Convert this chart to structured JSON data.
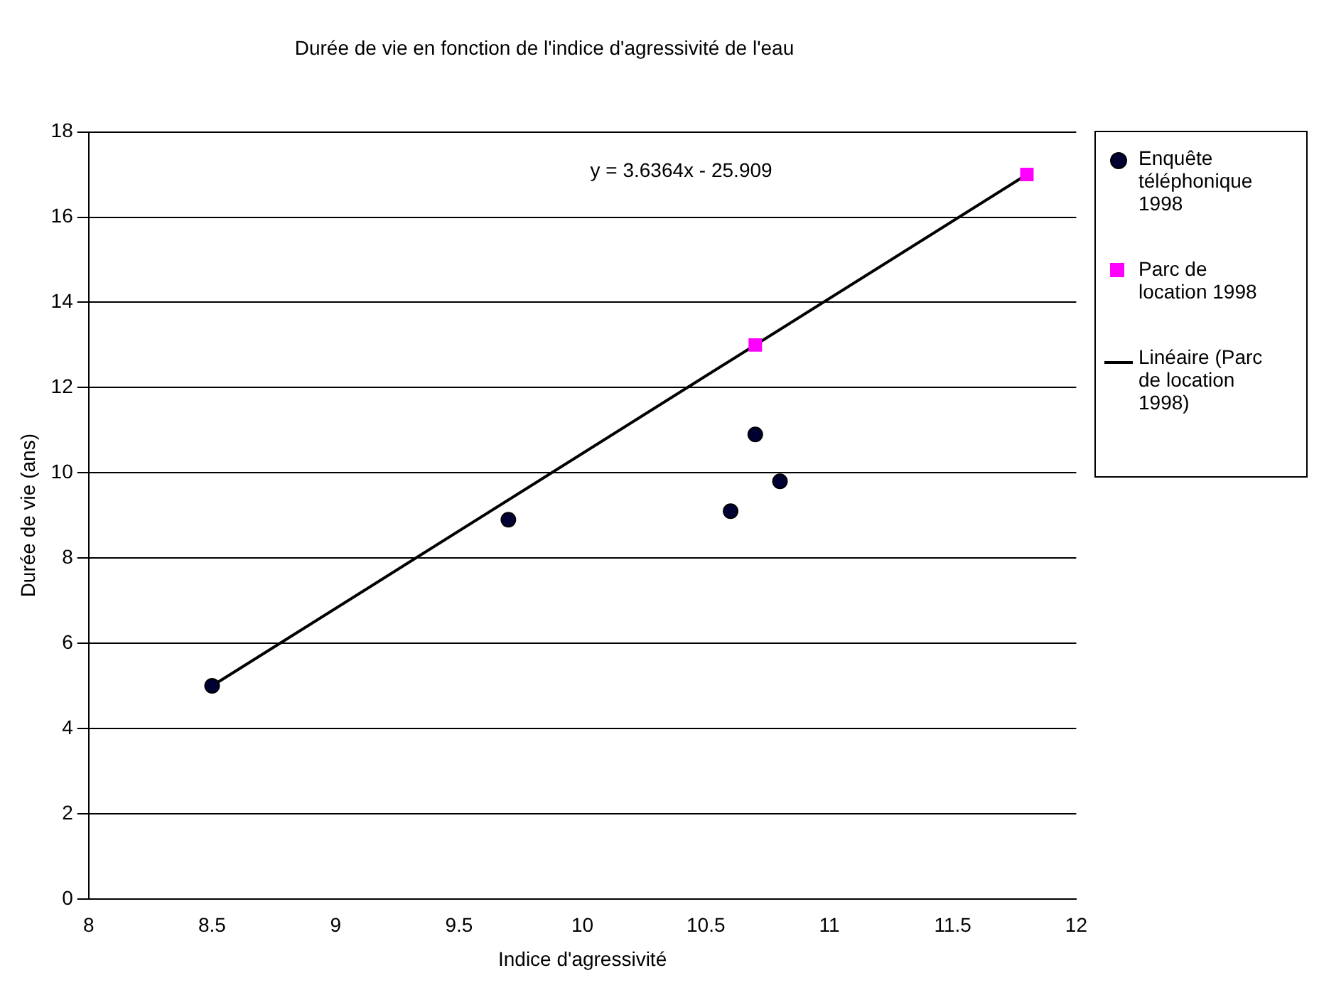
{
  "chart_data": {
    "type": "scatter",
    "title": "Durée de vie en fonction de l'indice d'agressivité de l'eau",
    "xlabel": "Indice d'agressivité",
    "ylabel": "Durée de vie (ans)",
    "xlim": [
      8,
      12
    ],
    "xticks": [
      8,
      8.5,
      9,
      9.5,
      10,
      10.5,
      11,
      11.5,
      12
    ],
    "ylim": [
      0,
      18
    ],
    "yticks": [
      0,
      2,
      4,
      6,
      8,
      10,
      12,
      14,
      16,
      18
    ],
    "grid": "y",
    "legend": "right",
    "annotations": [
      "y = 3.6364x - 25.909"
    ],
    "series": [
      {
        "name": "Enquête téléphonique 1998",
        "type": "scatter",
        "marker": "circle",
        "color": "#000033",
        "x": [
          8.5,
          9.7,
          10.6,
          10.7,
          10.8
        ],
        "values": [
          5,
          8.9,
          9.1,
          10.9,
          9.8
        ]
      },
      {
        "name": "Parc de location 1998",
        "type": "scatter",
        "marker": "square",
        "color": "#ff00ff",
        "x": [
          10.7,
          11.8
        ],
        "values": [
          13,
          17
        ]
      },
      {
        "name": "Linéaire (Parc de location 1998)",
        "type": "line",
        "marker": "none",
        "color": "#000000",
        "x": [
          8.5,
          11.8
        ],
        "values": [
          5,
          17
        ]
      }
    ]
  }
}
